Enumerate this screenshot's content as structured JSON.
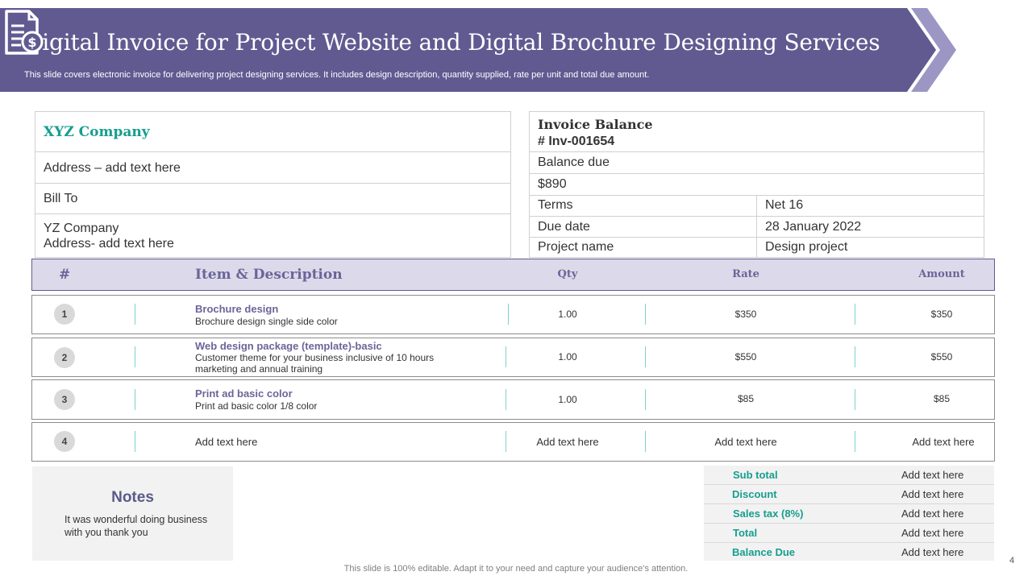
{
  "header": {
    "title": "Digital Invoice for Project Website and Digital Brochure Designing Services",
    "subtitle": "This slide covers electronic invoice for delivering project designing services. It includes design description, quantity supplied, rate per unit and total due amount.",
    "icon": "invoice-dollar-icon",
    "banner_color": "#615a91",
    "arrow_color": "#9b96c4"
  },
  "company": {
    "name": "XYZ Company",
    "address": "Address – add text  here",
    "bill_to": "Bill To",
    "client_line1": "YZ  Company",
    "client_line2": "Address- add text  here"
  },
  "balance": {
    "title": "Invoice Balance",
    "invoice_number": "# Inv-001654",
    "balance_due_label": "Balance due",
    "balance_due_value": "$890",
    "terms_label": "Terms",
    "terms_value": "Net 16",
    "due_date_label": "Due date",
    "due_date_value": "28 January  2022",
    "project_label": "Project name",
    "project_value": "Design project"
  },
  "table": {
    "headers": {
      "num": "#",
      "item": "Item & Description",
      "qty": "Qty",
      "rate": "Rate",
      "amount": "Amount"
    },
    "rows": [
      {
        "num": "1",
        "title": "Brochure design",
        "desc": "Brochure design single side color",
        "qty": "1.00",
        "rate": "$350",
        "amount": "$350"
      },
      {
        "num": "2",
        "title": "Web design package (template)-basic",
        "desc": "Customer theme for your business inclusive of 10 hours marketing and annual training",
        "qty": "1.00",
        "rate": "$550",
        "amount": "$550"
      },
      {
        "num": "3",
        "title": "Print ad basic color",
        "desc": "Print ad basic color 1/8 color",
        "qty": "1.00",
        "rate": "$85",
        "amount": "$85"
      },
      {
        "num": "4",
        "title": "Add text here",
        "qty": "Add text here",
        "rate": "Add text here",
        "amount": "Add text here"
      }
    ]
  },
  "notes": {
    "title": "Notes",
    "text": "It was wonderful  doing business with you thank you"
  },
  "totals": [
    {
      "label": "Sub total",
      "value": "Add text here"
    },
    {
      "label": "Discount",
      "value": "Add text here"
    },
    {
      "label": "Sales tax (8%)",
      "value": "Add text here"
    },
    {
      "label": "Total",
      "value": "Add text here"
    },
    {
      "label": "Balance Due",
      "value": "Add text here"
    }
  ],
  "footer": {
    "text": "This slide is 100% editable. Adapt it to your need and capture your audience’s attention.",
    "page_number": "4"
  }
}
